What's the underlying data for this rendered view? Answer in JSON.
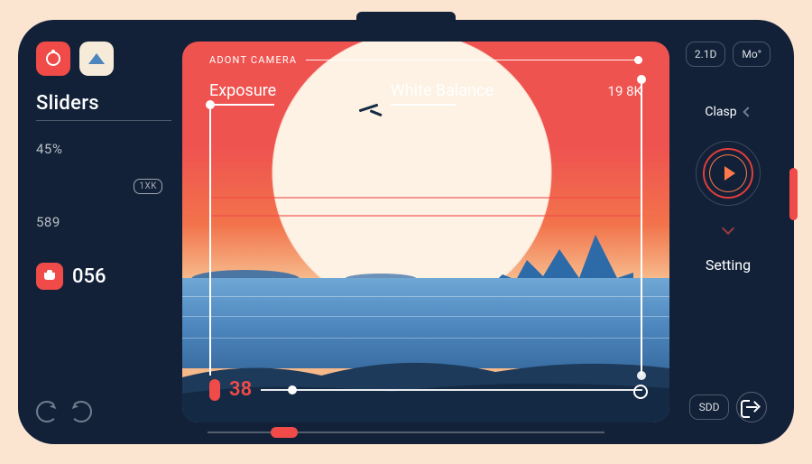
{
  "colors": {
    "page_bg": "#fbe5d1",
    "device_bg": "#122138",
    "accent": "#f04b49",
    "accent_dark": "#e23d3b",
    "white": "#ffffff",
    "cream": "#f6ead9",
    "sun": "#fdf2e3",
    "water1": "#6fa7d5",
    "water2": "#4c86bd",
    "water3": "#3a6ea3",
    "land1": "#1d3a5a",
    "land2": "#142a44",
    "mountain": "#2d6aa8",
    "sky_top": "#ef5350",
    "sky_mid": "#f2734b",
    "sky_low": "#f6b98a",
    "ring_glow": "#ff7a4a",
    "dim": "#9aa6b5"
  },
  "left": {
    "title": "Sliders",
    "stat1": "45%",
    "stat2": "589",
    "badge_value": "056",
    "kk_badge": "1XK"
  },
  "viewfinder": {
    "header": "ADONT CAMERA",
    "label_exposure": "Exposure",
    "label_wb": "White Balance",
    "wb_value": "19 8K",
    "timeline_value": "38",
    "thin_lines_y": [
      172,
      192
    ],
    "ripples_y": [
      20,
      42,
      66
    ]
  },
  "right": {
    "chip1": "2.1D",
    "chip2": "Mo°",
    "clasp": "Clasp",
    "setting": "Setting",
    "sdd": "SDD"
  },
  "bottom": {
    "knob_pos_pct": 16
  }
}
